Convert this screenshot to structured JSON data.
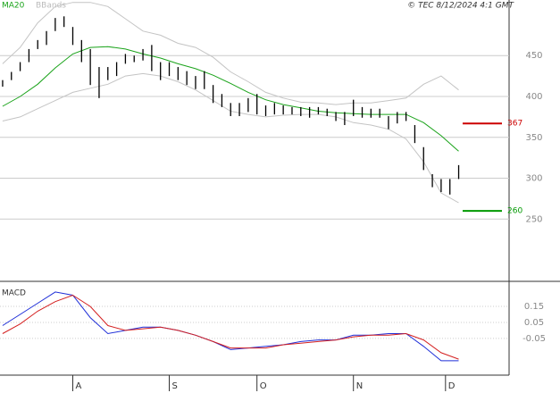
{
  "chart_data": [
    {
      "type": "ohlc",
      "legend": [
        "MA20",
        "BBands"
      ],
      "annotation": "© TEC 8/12/2024 4:1 GMT",
      "x": [
        0,
        2,
        4,
        6,
        8,
        10,
        12,
        14,
        16,
        18,
        20,
        22,
        24,
        26,
        28,
        30,
        32,
        34,
        36,
        38,
        40,
        42,
        44,
        46,
        48,
        50,
        52,
        54,
        56,
        58,
        60,
        62,
        64,
        66,
        68,
        70,
        72,
        74,
        76,
        78,
        80,
        82,
        84,
        86,
        88,
        90,
        92,
        94,
        96,
        98,
        100,
        102,
        104
      ],
      "high": [
        420,
        430,
        442,
        458,
        469,
        480,
        496,
        498,
        485,
        469,
        458,
        436,
        436,
        442,
        452,
        450,
        458,
        463,
        442,
        442,
        436,
        431,
        425,
        431,
        414,
        403,
        392,
        392,
        398,
        403,
        389,
        392,
        389,
        387,
        387,
        387,
        387,
        385,
        381,
        381,
        396,
        387,
        385,
        385,
        376,
        381,
        381,
        365,
        338,
        305,
        299,
        299,
        316
      ],
      "low": [
        412,
        420,
        431,
        442,
        458,
        463,
        480,
        485,
        463,
        442,
        414,
        398,
        420,
        425,
        440,
        442,
        444,
        431,
        420,
        425,
        420,
        414,
        409,
        409,
        392,
        387,
        376,
        376,
        381,
        378,
        376,
        378,
        378,
        378,
        376,
        374,
        378,
        376,
        370,
        365,
        376,
        374,
        374,
        374,
        360,
        367,
        370,
        343,
        310,
        289,
        283,
        280,
        299
      ],
      "color": "#000000",
      "lines": [
        {
          "name": "MA20",
          "color": "#1aa31a",
          "x": [
            0,
            4,
            8,
            12,
            16,
            20,
            24,
            28,
            32,
            36,
            40,
            44,
            48,
            52,
            56,
            60,
            64,
            68,
            72,
            76,
            80,
            84,
            88,
            92,
            96,
            100,
            104
          ],
          "values": [
            388,
            400,
            415,
            435,
            452,
            460,
            461,
            458,
            452,
            447,
            440,
            434,
            426,
            416,
            405,
            396,
            390,
            386,
            382,
            380,
            379,
            378,
            378,
            378,
            368,
            352,
            333
          ]
        },
        {
          "name": "BBands",
          "color": "#c4c4c4",
          "x": [
            0,
            4,
            8,
            12,
            16,
            20,
            24,
            28,
            32,
            36,
            40,
            44,
            48,
            52,
            56,
            60,
            64,
            68,
            72,
            76,
            80,
            84,
            88,
            92,
            96,
            100,
            104
          ],
          "upper": [
            440,
            460,
            490,
            510,
            515,
            515,
            510,
            495,
            480,
            475,
            465,
            460,
            448,
            430,
            418,
            405,
            398,
            393,
            392,
            390,
            392,
            392,
            395,
            398,
            415,
            425,
            408
          ],
          "lower": [
            370,
            375,
            385,
            395,
            405,
            410,
            415,
            425,
            428,
            425,
            418,
            408,
            395,
            382,
            378,
            375,
            377,
            378,
            378,
            375,
            368,
            365,
            360,
            348,
            320,
            282,
            270
          ]
        }
      ],
      "levels": [
        {
          "value": 367,
          "color": "#cc0000"
        },
        {
          "value": 260,
          "color": "#009900"
        }
      ],
      "xlim": [
        -0.6,
        115.5
      ],
      "ylim": [
        176,
        518
      ],
      "yticks": [
        250,
        300,
        350,
        400,
        450
      ],
      "grid": true
    },
    {
      "type": "line",
      "title": "MACD",
      "x": [
        0,
        4,
        8,
        12,
        16,
        20,
        24,
        28,
        32,
        36,
        40,
        44,
        48,
        52,
        56,
        60,
        64,
        68,
        72,
        76,
        80,
        84,
        88,
        92,
        96,
        100,
        104
      ],
      "series": [
        {
          "color": "#1f2fd8",
          "values": [
            0.03,
            0.1,
            0.17,
            0.24,
            0.22,
            0.08,
            -0.02,
            0.0,
            0.02,
            0.02,
            0.0,
            -0.03,
            -0.07,
            -0.12,
            -0.11,
            -0.1,
            -0.09,
            -0.07,
            -0.06,
            -0.06,
            -0.03,
            -0.03,
            -0.02,
            -0.02,
            -0.1,
            -0.19,
            -0.19
          ]
        },
        {
          "color": "#d42020",
          "values": [
            -0.02,
            0.04,
            0.12,
            0.18,
            0.22,
            0.15,
            0.03,
            0.0,
            0.01,
            0.02,
            0.0,
            -0.03,
            -0.07,
            -0.11,
            -0.11,
            -0.11,
            -0.09,
            -0.08,
            -0.07,
            -0.06,
            -0.04,
            -0.03,
            -0.03,
            -0.02,
            -0.06,
            -0.14,
            -0.18
          ]
        }
      ],
      "xlim": [
        -0.6,
        115.5
      ],
      "xticks": [
        {
          "value": 16,
          "label": "A"
        },
        {
          "value": 38,
          "label": "S"
        },
        {
          "value": 58,
          "label": "O"
        },
        {
          "value": 80,
          "label": "N"
        },
        {
          "value": 101,
          "label": "D"
        }
      ],
      "ylim": [
        -0.28,
        0.29
      ],
      "yticks": [
        0.15,
        0.05,
        -0.05
      ],
      "grid": true
    }
  ]
}
